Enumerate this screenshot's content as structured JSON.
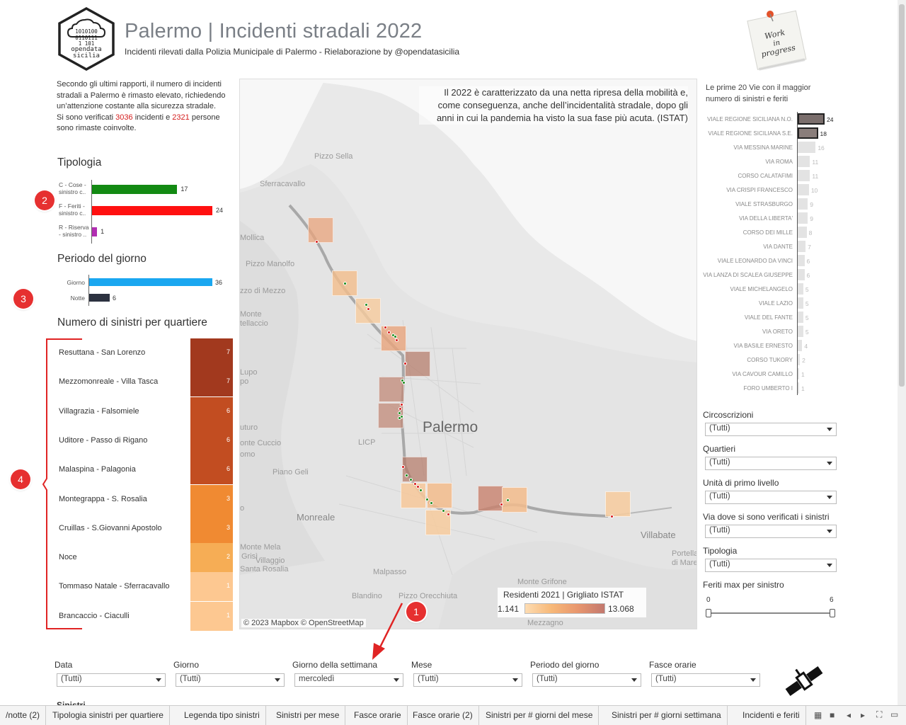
{
  "header": {
    "title": "Palermo | Incidenti stradali 2022",
    "subtitle": "Incidenti rilevati dalla Polizia Municipale di Palermo - Rielaborazione by @opendatasicilia",
    "logo_text": [
      "1010100",
      "0110111",
      "1 101",
      "opendata",
      "sicilia"
    ],
    "postit_text": [
      "Work",
      "in",
      "progress"
    ]
  },
  "intro": {
    "text_before": "Secondo gli ultimi rapporti, il numero di incidenti stradali a Palermo è rimasto elevato, richiedendo un’attenzione costante alla sicurezza stradale.",
    "text_line2_a": "Si sono verificati ",
    "incidenti": "3036",
    "text_line2_b": " incidenti e ",
    "persone": "2321",
    "text_line2_c": " persone sono rimaste coinvolte."
  },
  "tipologia": {
    "title": "Tipologia",
    "items": [
      {
        "label": "C - Cose - sinistro c..",
        "value": 17,
        "value_text": "17",
        "color": "#138a13"
      },
      {
        "label": "F - Feriti - sinistro c..",
        "value": 24,
        "value_text": "24",
        "color": "#ff1010"
      },
      {
        "label": "R - Riserva - sinistro ..",
        "value": 1,
        "value_text": "1",
        "color": "#b22eb2"
      }
    ],
    "max": 24
  },
  "periodo": {
    "title": "Periodo del giorno",
    "items": [
      {
        "label": "Giorno",
        "value": 36,
        "value_text": "36",
        "color": "#1aa7f0"
      },
      {
        "label": "Notte",
        "value": 6,
        "value_text": "6",
        "color": "#2c3240"
      }
    ],
    "max": 36
  },
  "quartieri": {
    "title": "Numero di sinistri per quartiere",
    "rows": [
      {
        "name": "Resuttana - San Lorenzo",
        "value": "7",
        "color": "#a2391e"
      },
      {
        "name": "Mezzomonreale - Villa Tasca",
        "value": "7",
        "color": "#a2391e"
      },
      {
        "name": "Villagrazia - Falsomiele",
        "value": "6",
        "color": "#c24d21"
      },
      {
        "name": "Uditore - Passo di Rigano",
        "value": "6",
        "color": "#c24d21"
      },
      {
        "name": "Malaspina - Palagonia",
        "value": "6",
        "color": "#c24d21"
      },
      {
        "name": "Montegrappa - S. Rosalia",
        "value": "3",
        "color": "#f08a32"
      },
      {
        "name": "Cruillas - S.Giovanni Apostolo",
        "value": "3",
        "color": "#f08a32"
      },
      {
        "name": "Noce",
        "value": "2",
        "color": "#f6ad55"
      },
      {
        "name": "Tommaso Natale - Sferracavallo",
        "value": "1",
        "color": "#fdc891"
      },
      {
        "name": "Brancaccio - Ciaculli",
        "value": "1",
        "color": "#fdc891"
      }
    ]
  },
  "markers": [
    "2",
    "3",
    "4",
    "1"
  ],
  "map": {
    "annotation": "Il 2022 è caratterizzato da una netta ripresa della mobilità e, come conseguenza, anche dell’incidentalità stradale, dopo gli anni in cui la pandemia ha visto la sua fase più acuta. (ISTAT)",
    "labels": [
      "Pizzo Sella",
      "Sferracavallo",
      "Mollica",
      "Pizzo Manolfo",
      "zzo di Mezzo",
      "Monte",
      "tellaccio",
      "Lupo",
      "po",
      "uturo",
      "onte Cuccio",
      "omo",
      "LICP",
      "Piano Geli",
      "Monreale",
      "Monte Mela",
      "Grisì",
      "Villaggio",
      "Santa Rosalia",
      "Malpasso",
      "Blandino",
      "Pizzo Orecchiuta",
      "Monte Grifone",
      "Mezzagno",
      "Villabate",
      "Portella",
      "di Mare",
      "o",
      "Palermo"
    ],
    "legend_title": "Residenti 2021 | Grigliato ISTAT",
    "legend_min": "1.141",
    "legend_max": "13.068",
    "copyright": "© 2023 Mapbox © OpenStreetMap"
  },
  "top20": {
    "title": "Le prime 20 Vie con il maggior numero di sinistri e feriti",
    "rows": [
      {
        "name": "VIALE REGIONE SICILIANA N.O.",
        "value": 24,
        "value_text": "24",
        "highlight": true
      },
      {
        "name": "VIALE REGIONE SICILIANA S.E.",
        "value": 18,
        "value_text": "18",
        "highlight": true
      },
      {
        "name": "VIA MESSINA MARINE",
        "value": 16,
        "value_text": "16",
        "highlight": false
      },
      {
        "name": "VIA ROMA",
        "value": 11,
        "value_text": "11",
        "highlight": false
      },
      {
        "name": "CORSO CALATAFIMI",
        "value": 11,
        "value_text": "11",
        "highlight": false
      },
      {
        "name": "VIA CRISPI FRANCESCO",
        "value": 10,
        "value_text": "10",
        "highlight": false
      },
      {
        "name": "VIALE STRASBURGO",
        "value": 9,
        "value_text": "9",
        "highlight": false
      },
      {
        "name": "VIA DELLA LIBERTA'",
        "value": 9,
        "value_text": "9",
        "highlight": false
      },
      {
        "name": "CORSO DEI MILLE",
        "value": 8,
        "value_text": "8",
        "highlight": false
      },
      {
        "name": "VIA DANTE",
        "value": 7,
        "value_text": "7",
        "highlight": false
      },
      {
        "name": "VIALE LEONARDO DA VINCI",
        "value": 6,
        "value_text": "6",
        "highlight": false
      },
      {
        "name": "VIA LANZA DI SCALEA GIUSEPPE",
        "value": 6,
        "value_text": "6",
        "highlight": false
      },
      {
        "name": "VIALE MICHELANGELO",
        "value": 5,
        "value_text": "5",
        "highlight": false
      },
      {
        "name": "VIALE LAZIO",
        "value": 5,
        "value_text": "5",
        "highlight": false
      },
      {
        "name": "VIALE DEL FANTE",
        "value": 5,
        "value_text": "5",
        "highlight": false
      },
      {
        "name": "VIA ORETO",
        "value": 5,
        "value_text": "5",
        "highlight": false
      },
      {
        "name": "VIA BASILE ERNESTO",
        "value": 4,
        "value_text": "4",
        "highlight": false
      },
      {
        "name": "CORSO TUKORY",
        "value": 2,
        "value_text": "2",
        "highlight": false
      },
      {
        "name": "VIA CAVOUR CAMILLO",
        "value": 1,
        "value_text": "1",
        "highlight": false
      },
      {
        "name": "FORO UMBERTO I",
        "value": 1,
        "value_text": "1",
        "highlight": false
      }
    ],
    "max": 24
  },
  "right_filters": [
    {
      "label": "Circoscrizioni",
      "value": "(Tutti)"
    },
    {
      "label": "Quartieri",
      "value": "(Tutti)"
    },
    {
      "label": "Unità di primo livello",
      "value": "(Tutti)"
    },
    {
      "label": "Via dove si sono verificati i sinistri",
      "value": "(Tutti)"
    },
    {
      "label": "Tipologia",
      "value": "(Tutti)"
    }
  ],
  "slider": {
    "label": "Feriti max per sinistro",
    "min": "0",
    "max": "6",
    "range_low": 0,
    "range_high": 6
  },
  "bottom_filters": [
    {
      "label": "Data",
      "value": "(Tutti)"
    },
    {
      "label": "Giorno",
      "value": "(Tutti)"
    },
    {
      "label": "Giorno della settimana",
      "value": "mercoledì"
    },
    {
      "label": "Mese",
      "value": "(Tutti)"
    },
    {
      "label": "Periodo del giorno",
      "value": "(Tutti)"
    },
    {
      "label": "Fasce orarie",
      "value": "(Tutti)"
    }
  ],
  "cutoff_label": "Sinistri",
  "tabs": [
    "/notte (2)",
    "Tipologia sinistri per quartiere",
    "Legenda tipo sinistri",
    "Sinistri per mese",
    "Fasce orarie",
    "Fasce orarie (2)",
    "Sinistri per # giorni del mese",
    "Sinistri per # giorni settimana",
    "Incidenti e feriti"
  ]
}
